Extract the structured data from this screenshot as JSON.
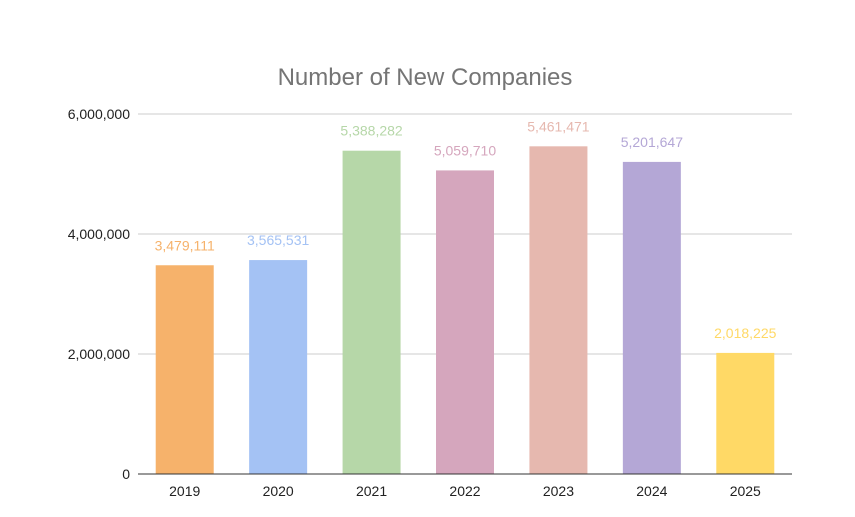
{
  "chart_data": {
    "type": "bar",
    "title": "Number of New Companies",
    "xlabel": "",
    "ylabel": "",
    "categories": [
      "2019",
      "2020",
      "2021",
      "2022",
      "2023",
      "2024",
      "2025"
    ],
    "values": [
      3479111,
      3565531,
      5388282,
      5059710,
      5461471,
      5201647,
      2018225
    ],
    "data_labels": [
      "3,479,111",
      "3,565,531",
      "5,388,282",
      "5,059,710",
      "5,461,471",
      "5,201,647",
      "2,018,225"
    ],
    "bar_colors": [
      "#F6B26B",
      "#A4C2F4",
      "#B6D7A8",
      "#D5A6BD",
      "#E6B8AF",
      "#B4A7D6",
      "#FFD966"
    ],
    "ylim": [
      0,
      6000000
    ],
    "y_ticks": [
      0,
      2000000,
      4000000,
      6000000
    ],
    "y_tick_labels": [
      "0",
      "2,000,000",
      "4,000,000",
      "6,000,000"
    ],
    "grid": true,
    "legend": "none",
    "colors": {
      "title": "#757575",
      "grid": "#cccccc",
      "axis": "#333333",
      "tick_text": "#222222"
    }
  }
}
